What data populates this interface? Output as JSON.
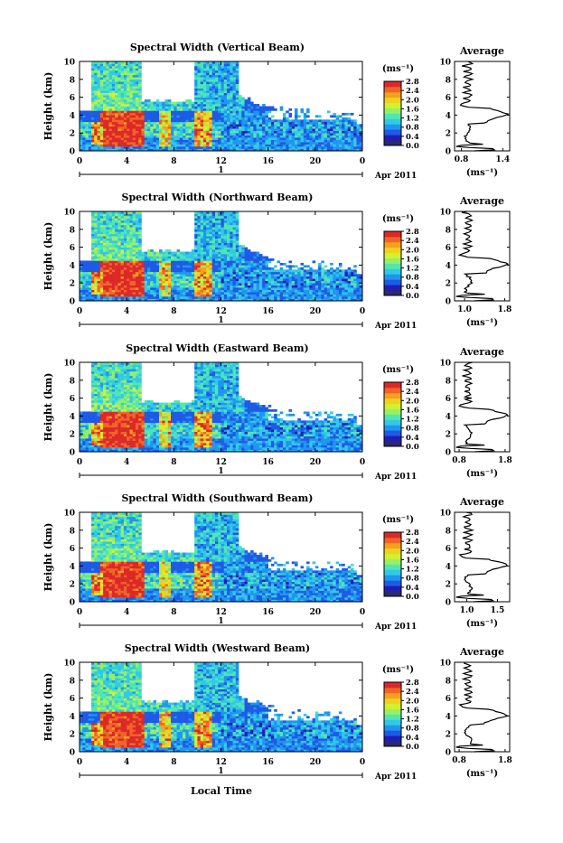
{
  "figure": {
    "xlabel": "Local Time",
    "date_label": "Apr 2011",
    "day_label": "1",
    "unit_label": "(ms⁻¹)",
    "average_title": "Average",
    "ylabel": "Height (km)"
  },
  "colors": {
    "scale": [
      "#2a2a6e",
      "#1e1eb4",
      "#1e5ae6",
      "#1e96f0",
      "#32c8e6",
      "#50e6b4",
      "#96f064",
      "#d2f032",
      "#f0d21e",
      "#f5a01e",
      "#f06428",
      "#dc2828"
    ],
    "missing": "#ffffff"
  },
  "chart_data": [
    {
      "type": "heatmap",
      "title": "Spectral Width (Vertical Beam)",
      "xlabel": "Local Time",
      "ylabel": "Height (km)",
      "xlim": [
        0,
        24
      ],
      "ylim": [
        0,
        10
      ],
      "x_ticks": [
        "0",
        "4",
        "8",
        "12",
        "16",
        "20",
        "0"
      ],
      "y_ticks": [
        "0",
        "2",
        "4",
        "6",
        "8",
        "10"
      ],
      "colorbar": {
        "min": 0.0,
        "max": 2.8,
        "ticks": [
          "0.0",
          "0.4",
          "0.8",
          "1.2",
          "1.6",
          "2.0",
          "2.4",
          "2.8"
        ]
      },
      "average_profile": {
        "x_ticks": [
          "0.8",
          "1.4"
        ],
        "xlim": [
          0.7,
          1.5
        ]
      }
    },
    {
      "type": "heatmap",
      "title": "Spectral Width (Northward Beam)",
      "xlabel": "Local Time",
      "ylabel": "Height (km)",
      "xlim": [
        0,
        24
      ],
      "ylim": [
        0,
        10
      ],
      "x_ticks": [
        "0",
        "4",
        "8",
        "12",
        "16",
        "20",
        "0"
      ],
      "y_ticks": [
        "0",
        "2",
        "4",
        "6",
        "8",
        "10"
      ],
      "colorbar": {
        "min": 0.0,
        "max": 2.8,
        "ticks": [
          "0.0",
          "0.4",
          "0.8",
          "1.2",
          "1.6",
          "2.0",
          "2.4",
          "2.8"
        ]
      },
      "average_profile": {
        "x_ticks": [
          "1.0",
          "1.8"
        ],
        "xlim": [
          0.8,
          1.9
        ]
      }
    },
    {
      "type": "heatmap",
      "title": "Spectral Width (Eastward Beam)",
      "xlabel": "Local Time",
      "ylabel": "Height (km)",
      "xlim": [
        0,
        24
      ],
      "ylim": [
        0,
        10
      ],
      "x_ticks": [
        "0",
        "4",
        "8",
        "12",
        "16",
        "20",
        "0"
      ],
      "y_ticks": [
        "0",
        "2",
        "4",
        "6",
        "8",
        "10"
      ],
      "colorbar": {
        "min": 0.0,
        "max": 2.8,
        "ticks": [
          "0.0",
          "0.4",
          "0.8",
          "1.2",
          "1.6",
          "2.0",
          "2.4",
          "2.8"
        ]
      },
      "average_profile": {
        "x_ticks": [
          "0.8",
          "1.8"
        ],
        "xlim": [
          0.7,
          1.9
        ]
      }
    },
    {
      "type": "heatmap",
      "title": "Spectral Width (Southward Beam)",
      "xlabel": "Local Time",
      "ylabel": "Height (km)",
      "xlim": [
        0,
        24
      ],
      "ylim": [
        0,
        10
      ],
      "x_ticks": [
        "0",
        "4",
        "8",
        "12",
        "16",
        "20",
        "0"
      ],
      "y_ticks": [
        "0",
        "2",
        "4",
        "6",
        "8",
        "10"
      ],
      "colorbar": {
        "min": 0.0,
        "max": 2.8,
        "ticks": [
          "0.0",
          "0.4",
          "0.8",
          "1.2",
          "1.6",
          "2.0",
          "2.4",
          "2.8"
        ]
      },
      "average_profile": {
        "x_ticks": [
          "1.0",
          "1.5"
        ],
        "xlim": [
          0.8,
          1.7
        ]
      }
    },
    {
      "type": "heatmap",
      "title": "Spectral Width (Westward Beam)",
      "xlabel": "Local Time",
      "ylabel": "Height (km)",
      "xlim": [
        0,
        24
      ],
      "ylim": [
        0,
        10
      ],
      "x_ticks": [
        "0",
        "4",
        "8",
        "12",
        "16",
        "20",
        "0"
      ],
      "y_ticks": [
        "0",
        "2",
        "4",
        "6",
        "8",
        "10"
      ],
      "colorbar": {
        "min": 0.0,
        "max": 2.8,
        "ticks": [
          "0.0",
          "0.4",
          "0.8",
          "1.2",
          "1.6",
          "2.0",
          "2.4",
          "2.8"
        ]
      },
      "average_profile": {
        "x_ticks": [
          "0.8",
          "1.8"
        ],
        "xlim": [
          0.7,
          1.9
        ]
      }
    }
  ]
}
